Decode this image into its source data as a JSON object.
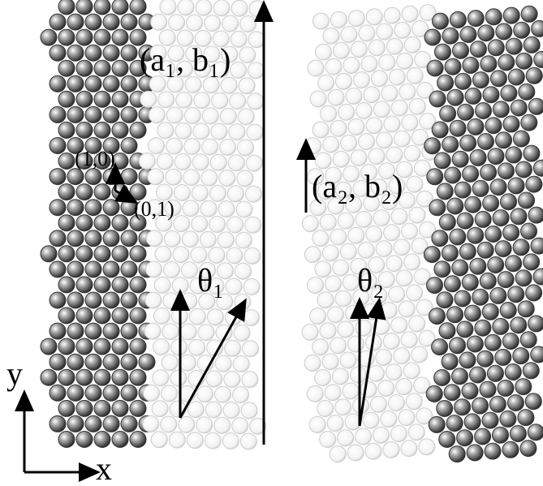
{
  "labels": {
    "lattice_1": "(a₁, b₁)",
    "vector_1_0": "(1,0)",
    "vector_0_1": "(0,1)",
    "lattice_2": "(a₂, b₂)",
    "angle_1": "θ₁",
    "angle_2": "θ₂"
  },
  "axes": {
    "y": "y",
    "x": "x"
  }
}
